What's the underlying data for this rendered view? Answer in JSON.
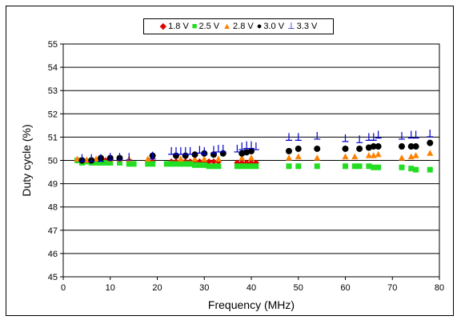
{
  "chart_data": {
    "type": "scatter",
    "xlabel": "Frequency (MHz)",
    "ylabel": "Duty cycle (%)",
    "xlim": [
      0,
      80
    ],
    "ylim": [
      45,
      55
    ],
    "xticks": [
      "0",
      "10",
      "20",
      "30",
      "40",
      "50",
      "60",
      "70",
      "80"
    ],
    "yticks": [
      "45",
      "46",
      "47",
      "48",
      "49",
      "50",
      "51",
      "52",
      "53",
      "54",
      "55"
    ],
    "grid": "horizontal",
    "legend_position": "top",
    "series": [
      {
        "name": "1.8 V",
        "color": "#e00000",
        "marker": "diamond",
        "points": [
          [
            3,
            50.0
          ],
          [
            4,
            50.0
          ],
          [
            5,
            50.0
          ],
          [
            6,
            49.95
          ],
          [
            7,
            50.0
          ],
          [
            8,
            50.0
          ],
          [
            9,
            50.0
          ],
          [
            10,
            50.0
          ],
          [
            12,
            50.0
          ],
          [
            14,
            50.0
          ],
          [
            18,
            49.95
          ],
          [
            19,
            49.95
          ],
          [
            23,
            49.95
          ],
          [
            24,
            49.95
          ],
          [
            25,
            49.95
          ],
          [
            26,
            49.95
          ],
          [
            27,
            49.95
          ],
          [
            28,
            49.95
          ],
          [
            29,
            49.95
          ],
          [
            30,
            49.95
          ],
          [
            31,
            49.95
          ],
          [
            32,
            49.95
          ],
          [
            33,
            49.95
          ],
          [
            37,
            49.9
          ],
          [
            38,
            49.9
          ],
          [
            39,
            49.9
          ],
          [
            40,
            49.9
          ],
          [
            41,
            49.9
          ]
        ]
      },
      {
        "name": "2.5 V",
        "color": "#22dd22",
        "marker": "square",
        "points": [
          [
            3,
            50.0
          ],
          [
            4,
            49.9
          ],
          [
            5,
            49.95
          ],
          [
            6,
            49.9
          ],
          [
            7,
            49.9
          ],
          [
            8,
            49.9
          ],
          [
            9,
            49.9
          ],
          [
            10,
            49.9
          ],
          [
            12,
            49.9
          ],
          [
            14,
            49.85
          ],
          [
            15,
            49.85
          ],
          [
            18,
            49.85
          ],
          [
            19,
            49.85
          ],
          [
            22,
            49.85
          ],
          [
            23,
            49.85
          ],
          [
            24,
            49.85
          ],
          [
            25,
            49.85
          ],
          [
            26,
            49.85
          ],
          [
            27,
            49.85
          ],
          [
            28,
            49.8
          ],
          [
            29,
            49.8
          ],
          [
            30,
            49.8
          ],
          [
            31,
            49.75
          ],
          [
            32,
            49.75
          ],
          [
            33,
            49.75
          ],
          [
            37,
            49.75
          ],
          [
            38,
            49.75
          ],
          [
            39,
            49.75
          ],
          [
            40,
            49.75
          ],
          [
            41,
            49.75
          ],
          [
            48,
            49.75
          ],
          [
            50,
            49.75
          ],
          [
            54,
            49.75
          ],
          [
            60,
            49.75
          ],
          [
            62,
            49.75
          ],
          [
            63,
            49.75
          ],
          [
            65,
            49.75
          ],
          [
            66,
            49.7
          ],
          [
            67,
            49.7
          ],
          [
            72,
            49.7
          ],
          [
            74,
            49.65
          ],
          [
            75,
            49.6
          ],
          [
            78,
            49.6
          ]
        ]
      },
      {
        "name": "2.8 V",
        "color": "#ff8000",
        "marker": "triangle",
        "points": [
          [
            3,
            50.05
          ],
          [
            5,
            50.0
          ],
          [
            7,
            50.05
          ],
          [
            10,
            50.05
          ],
          [
            12,
            50.05
          ],
          [
            14,
            50.05
          ],
          [
            18,
            50.05
          ],
          [
            25,
            50.05
          ],
          [
            28,
            50.05
          ],
          [
            30,
            50.05
          ],
          [
            33,
            50.05
          ],
          [
            38,
            50.1
          ],
          [
            40,
            50.1
          ],
          [
            48,
            50.1
          ],
          [
            50,
            50.15
          ],
          [
            54,
            50.1
          ],
          [
            60,
            50.15
          ],
          [
            62,
            50.15
          ],
          [
            65,
            50.2
          ],
          [
            66,
            50.2
          ],
          [
            67,
            50.25
          ],
          [
            72,
            50.1
          ],
          [
            74,
            50.15
          ],
          [
            75,
            50.2
          ],
          [
            78,
            50.3
          ]
        ]
      },
      {
        "name": "3.0 V",
        "color": "#000000",
        "marker": "circle",
        "points": [
          [
            4,
            50.0
          ],
          [
            6,
            50.0
          ],
          [
            8,
            50.1
          ],
          [
            10,
            50.1
          ],
          [
            12,
            50.1
          ],
          [
            19,
            50.2
          ],
          [
            24,
            50.2
          ],
          [
            26,
            50.2
          ],
          [
            28,
            50.25
          ],
          [
            30,
            50.3
          ],
          [
            32,
            50.25
          ],
          [
            34,
            50.3
          ],
          [
            38,
            50.3
          ],
          [
            39,
            50.35
          ],
          [
            40,
            50.4
          ],
          [
            48,
            50.4
          ],
          [
            50,
            50.5
          ],
          [
            54,
            50.5
          ],
          [
            60,
            50.5
          ],
          [
            63,
            50.5
          ],
          [
            65,
            50.55
          ],
          [
            66,
            50.6
          ],
          [
            67,
            50.6
          ],
          [
            72,
            50.6
          ],
          [
            74,
            50.6
          ],
          [
            75,
            50.6
          ],
          [
            78,
            50.75
          ]
        ]
      },
      {
        "name": "3.3 V",
        "color": "#0000cc",
        "marker": "perp",
        "points": [
          [
            4,
            50.1
          ],
          [
            6,
            50.1
          ],
          [
            8,
            50.1
          ],
          [
            10,
            50.15
          ],
          [
            12,
            50.15
          ],
          [
            14,
            50.15
          ],
          [
            19,
            50.2
          ],
          [
            23,
            50.4
          ],
          [
            24,
            50.4
          ],
          [
            25,
            50.4
          ],
          [
            26,
            50.4
          ],
          [
            27,
            50.4
          ],
          [
            29,
            50.45
          ],
          [
            30,
            50.4
          ],
          [
            32,
            50.45
          ],
          [
            33,
            50.5
          ],
          [
            34,
            50.5
          ],
          [
            37,
            50.5
          ],
          [
            38,
            50.6
          ],
          [
            39,
            50.65
          ],
          [
            40,
            50.65
          ],
          [
            41,
            50.6
          ],
          [
            48,
            51.0
          ],
          [
            50,
            51.0
          ],
          [
            54,
            51.05
          ],
          [
            60,
            50.95
          ],
          [
            63,
            50.9
          ],
          [
            65,
            51.0
          ],
          [
            66,
            51.0
          ],
          [
            67,
            51.1
          ],
          [
            72,
            51.05
          ],
          [
            74,
            51.1
          ],
          [
            75,
            51.1
          ],
          [
            78,
            51.15
          ]
        ]
      }
    ]
  }
}
